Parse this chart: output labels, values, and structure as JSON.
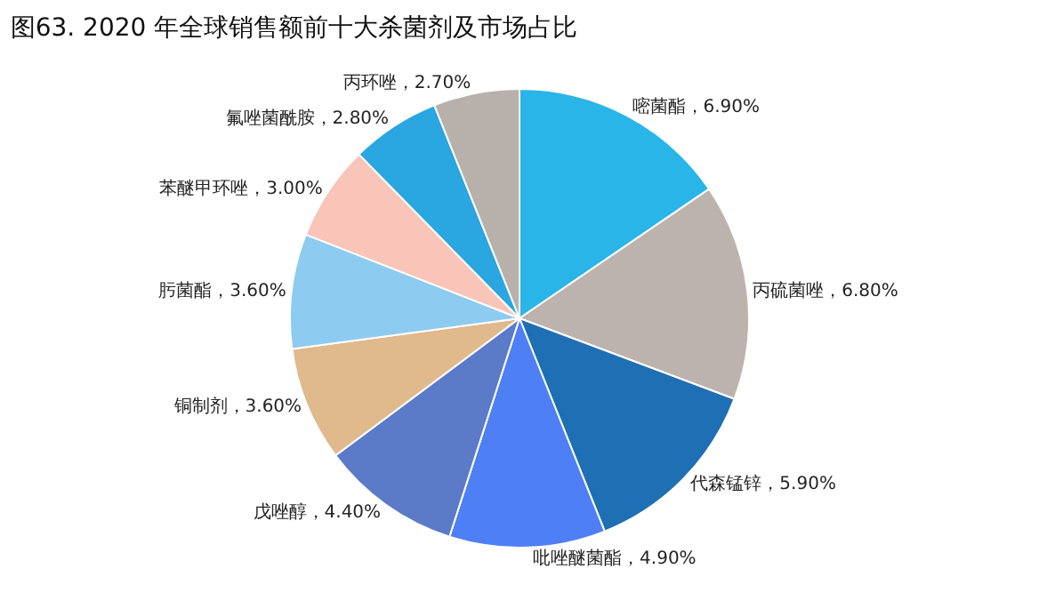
{
  "chart_data": {
    "type": "pie",
    "title": "图63. 2020 年全球销售额前十大杀菌剂及市场占比",
    "categories": [
      "嘧菌酯",
      "丙硫菌唑",
      "代森锰锌",
      "吡唑醚菌酯",
      "戊唑醇",
      "铜制剂",
      "肟菌酯",
      "苯醚甲环唑",
      "氟唑菌酰胺",
      "丙环唑"
    ],
    "values": [
      6.9,
      6.8,
      5.9,
      4.9,
      4.4,
      3.6,
      3.6,
      3.0,
      2.8,
      2.7
    ],
    "value_labels": [
      "6.90%",
      "6.80%",
      "5.90%",
      "4.90%",
      "4.40%",
      "3.60%",
      "3.60%",
      "3.00%",
      "2.80%",
      "2.70%"
    ],
    "colors": [
      "#29b5e8",
      "#bdb3ae",
      "#1f6fb4",
      "#4f7ff5",
      "#5b7bc9",
      "#e0b98c",
      "#8ecbf0",
      "#f8c5b8",
      "#2aa6e0",
      "#b8b0aa"
    ],
    "legend": false
  }
}
